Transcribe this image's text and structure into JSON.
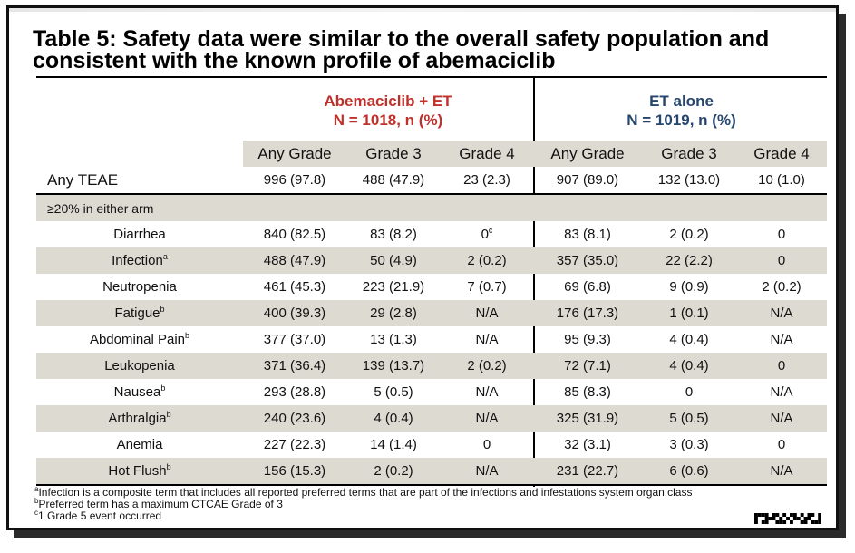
{
  "title": "Table 5: Safety data were similar to the overall safety population and consistent with the known profile of abemaciclib",
  "colors": {
    "abema": "#c0312b",
    "et": "#26466d",
    "row_shade": "#dddad2"
  },
  "groups": {
    "abema": {
      "name": "Abemaciclib + ET",
      "n": "N = 1018, n (%)"
    },
    "et": {
      "name": "ET alone",
      "n": "N = 1019, n (%)"
    }
  },
  "columns": [
    "Any Grade",
    "Grade 3",
    "Grade 4",
    "Any Grade",
    "Grade 3",
    "Grade 4"
  ],
  "any_teae": {
    "label": "Any TEAE",
    "values": [
      "996 (97.8)",
      "488 (47.9)",
      "23 (2.3)",
      "907 (89.0)",
      "132 (13.0)",
      "10 (1.0)"
    ]
  },
  "section_label": "≥20% in either arm",
  "rows": [
    {
      "label": "Diarrhea",
      "sup": "",
      "values": [
        "840 (82.5)",
        "83 (8.2)",
        "0",
        "83 (8.1)",
        "2 (0.2)",
        "0"
      ],
      "value_sup": [
        "",
        "",
        "c",
        "",
        "",
        ""
      ]
    },
    {
      "label": "Infection",
      "sup": "a",
      "values": [
        "488 (47.9)",
        "50 (4.9)",
        "2 (0.2)",
        "357 (35.0)",
        "22 (2.2)",
        "0"
      ],
      "value_sup": [
        "",
        "",
        "",
        "",
        "",
        ""
      ]
    },
    {
      "label": "Neutropenia",
      "sup": "",
      "values": [
        "461 (45.3)",
        "223 (21.9)",
        "7 (0.7)",
        "69 (6.8)",
        "9 (0.9)",
        "2 (0.2)"
      ],
      "value_sup": [
        "",
        "",
        "",
        "",
        "",
        ""
      ]
    },
    {
      "label": "Fatigue",
      "sup": "b",
      "values": [
        "400 (39.3)",
        "29 (2.8)",
        "N/A",
        "176 (17.3)",
        "1 (0.1)",
        "N/A"
      ],
      "value_sup": [
        "",
        "",
        "",
        "",
        "",
        ""
      ]
    },
    {
      "label": "Abdominal Pain",
      "sup": "b",
      "values": [
        "377 (37.0)",
        "13 (1.3)",
        "N/A",
        "95 (9.3)",
        "4 (0.4)",
        "N/A"
      ],
      "value_sup": [
        "",
        "",
        "",
        "",
        "",
        ""
      ]
    },
    {
      "label": "Leukopenia",
      "sup": "",
      "values": [
        "371 (36.4)",
        "139 (13.7)",
        "2 (0.2)",
        "72 (7.1)",
        "4 (0.4)",
        "0"
      ],
      "value_sup": [
        "",
        "",
        "",
        "",
        "",
        ""
      ]
    },
    {
      "label": "Nausea",
      "sup": "b",
      "values": [
        "293 (28.8)",
        "5 (0.5)",
        "N/A",
        "85 (8.3)",
        "0",
        "N/A"
      ],
      "value_sup": [
        "",
        "",
        "",
        "",
        "",
        ""
      ]
    },
    {
      "label": "Arthralgia",
      "sup": "b",
      "values": [
        "240 (23.6)",
        "4 (0.4)",
        "N/A",
        "325 (31.9)",
        "5 (0.5)",
        "N/A"
      ],
      "value_sup": [
        "",
        "",
        "",
        "",
        "",
        ""
      ]
    },
    {
      "label": "Anemia",
      "sup": "",
      "values": [
        "227 (22.3)",
        "14 (1.4)",
        "0",
        "32 (3.1)",
        "3 (0.3)",
        "0"
      ],
      "value_sup": [
        "",
        "",
        "",
        "",
        "",
        ""
      ]
    },
    {
      "label": "Hot Flush",
      "sup": "b",
      "values": [
        "156 (15.3)",
        "2 (0.2)",
        "N/A",
        "231 (22.7)",
        "6 (0.6)",
        "N/A"
      ],
      "value_sup": [
        "",
        "",
        "",
        "",
        "",
        ""
      ]
    }
  ],
  "footnotes": [
    {
      "mark": "a",
      "text": "Infection is a composite term that includes all reported preferred terms that are part of the infections and infestations system organ class"
    },
    {
      "mark": "b",
      "text": "Preferred term has a maximum CTCAE Grade of 3"
    },
    {
      "mark": "c",
      "text": "1 Grade 5 event occurred"
    }
  ]
}
